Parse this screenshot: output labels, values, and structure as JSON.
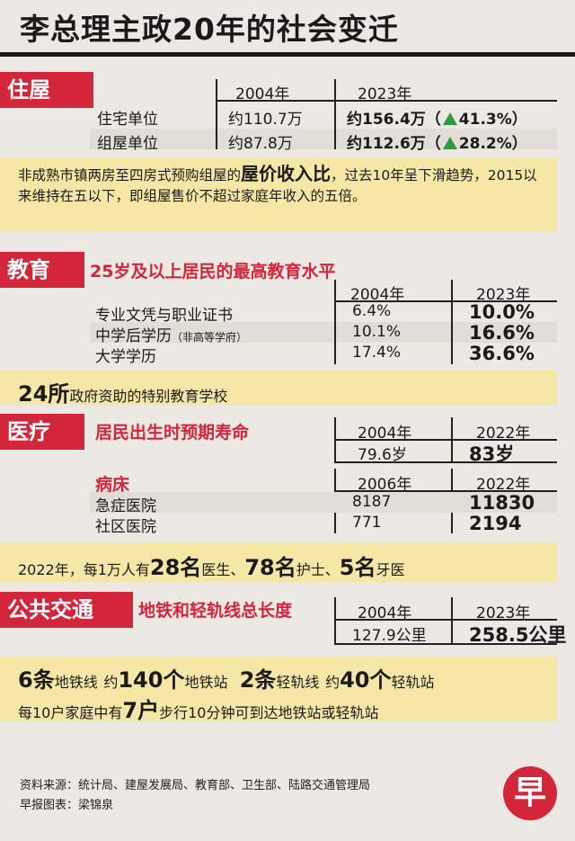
{
  "title": "李总理主政20年的社会变迁",
  "housing": {
    "tag": "住屋",
    "col_2004": "2004年",
    "col_2023": "2023年",
    "rows": [
      {
        "label": "住宅单位",
        "v2004": "约110.7万",
        "v2023": "约156.4万",
        "change": "41.3%"
      },
      {
        "label": "组屋单位",
        "v2004": "约87.8万",
        "v2023": "约112.6万",
        "change": "28.2%"
      }
    ],
    "note_pre": "非成熟市镇两房至四房式预购组屋的",
    "note_highlight": "屋价收入比",
    "note_post": "，过去10年呈下滑趋势，2015以来维持在五以下，即组屋售价不超过家庭年收入的五倍。"
  },
  "education": {
    "tag": "教育",
    "subtitle": "25岁及以上居民的最高教育水平",
    "col_2004": "2004年",
    "col_2023": "2023年",
    "rows": [
      {
        "label": "专业文凭与职业证书",
        "label_small": "",
        "v2004": "6.4%",
        "v2023": "10.0%"
      },
      {
        "label": "中学后学历",
        "label_small": "（非高等学府）",
        "v2004": "10.1%",
        "v2023": "16.6%"
      },
      {
        "label": "大学学历",
        "label_small": "",
        "v2004": "17.4%",
        "v2023": "36.6%"
      }
    ],
    "schools_num": "24所",
    "schools_text": "政府资助的特别教育学校"
  },
  "health": {
    "tag": "医疗",
    "life_subtitle": "居民出生时预期寿命",
    "life_col_a": "2004年",
    "life_col_b": "2022年",
    "life_a": "79.6岁",
    "life_b": "83岁",
    "beds_subtitle": "病床",
    "beds_col_a": "2006年",
    "beds_col_b": "2022年",
    "beds_rows": [
      {
        "label": "急症医院",
        "a": "8187",
        "b": "11830"
      },
      {
        "label": "社区医院",
        "a": "771",
        "b": "2194"
      }
    ],
    "staff_pre": "2022年，每1万人有",
    "doctors_num": "28名",
    "doctors_text": "医生、",
    "nurses_num": "78名",
    "nurses_text": "护士、",
    "dentists_num": "5名",
    "dentists_text": "牙医"
  },
  "transport": {
    "tag": "公共交通",
    "subtitle": "地铁和轻轨线总长度",
    "col_2004": "2004年",
    "col_2023": "2023年",
    "v2004": "127.9公里",
    "v2023": "258.5公里",
    "mrt_lines_num": "6条",
    "mrt_lines_text": "地铁线",
    "approx1": "约",
    "mrt_stations_num": "140个",
    "mrt_stations_text": "地铁站",
    "lrt_lines_num": "2条",
    "lrt_lines_text": "轻轨线",
    "approx2": "约",
    "lrt_stations_num": "40个",
    "lrt_stations_text": "轻轨站",
    "walk_pre": "每10户家庭中有",
    "walk_num": "7户",
    "walk_post": "步行10分钟可到达地铁站或轻轨站"
  },
  "footer": {
    "source": "资料来源：统计局、建屋发展局、教育部、卫生部、陆路交通管理局",
    "credit": "早报图表：梁锦泉",
    "logo_char": "早"
  },
  "colors": {
    "accent": "#d3263a",
    "highlight": "#f7e7a6",
    "up": "#2f9d3d"
  }
}
